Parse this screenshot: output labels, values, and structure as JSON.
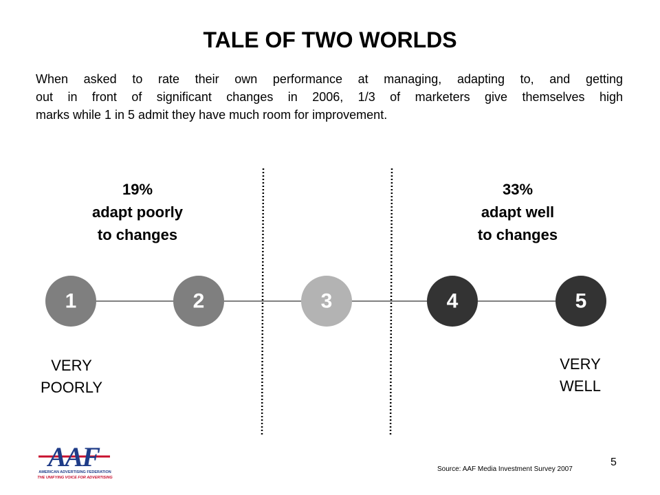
{
  "title": "TALE OF TWO WORLDS",
  "body_lines": [
    "When asked to rate their own performance at managing, adapting to, and getting",
    "out in front of significant changes in 2006, 1/3 of marketers give themselves high",
    "marks while 1 in 5 admit they have much room for improvement."
  ],
  "left_group": {
    "lines": [
      "19%",
      "adapt poorly",
      "to changes"
    ]
  },
  "right_group": {
    "lines": [
      "33%",
      "adapt well",
      "to changes"
    ]
  },
  "scale": {
    "points": [
      "1",
      "2",
      "3",
      "4",
      "5"
    ]
  },
  "left_end": {
    "lines": [
      "VERY",
      "POORLY"
    ]
  },
  "right_end": {
    "lines": [
      "VERY",
      "WELL"
    ]
  },
  "logo": {
    "mark": "AAF",
    "name": "American Advertising Federation",
    "tagline": "The Unifying Voice For Advertising"
  },
  "source": "Source: AAF Media Investment Survey 2007",
  "page_number": "5"
}
